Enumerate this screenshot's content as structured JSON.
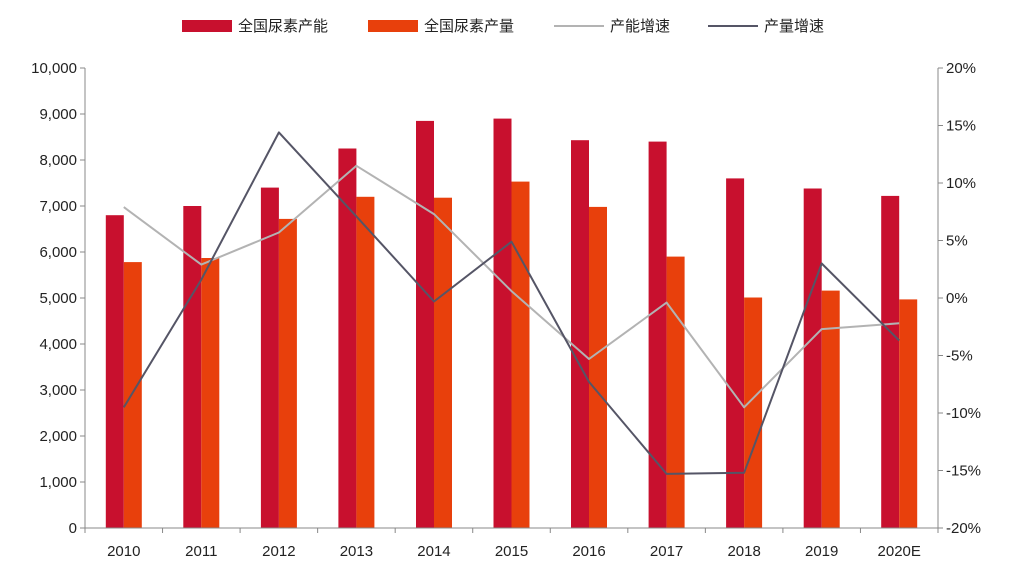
{
  "chart_data": {
    "type": "bar",
    "categories": [
      "2010",
      "2011",
      "2012",
      "2013",
      "2014",
      "2015",
      "2016",
      "2017",
      "2018",
      "2019",
      "2020E"
    ],
    "series": [
      {
        "name": "全国尿素产能",
        "kind": "bar",
        "axis": "left",
        "color": "#c8102e",
        "values": [
          6800,
          7000,
          7400,
          8250,
          8850,
          8900,
          8430,
          8400,
          7600,
          7380,
          7220
        ]
      },
      {
        "name": "全国尿素产量",
        "kind": "bar",
        "axis": "left",
        "color": "#e8400c",
        "values": [
          5780,
          5870,
          6720,
          7200,
          7180,
          7530,
          6980,
          5900,
          5010,
          5160,
          4970
        ]
      },
      {
        "name": "产能增速",
        "kind": "line",
        "axis": "right",
        "color": "#b3b3b3",
        "values": [
          7.9,
          2.9,
          5.7,
          11.5,
          7.3,
          0.6,
          -5.3,
          -0.4,
          -9.5,
          -2.7,
          -2.2
        ]
      },
      {
        "name": "产量增速",
        "kind": "line",
        "axis": "right",
        "color": "#555566",
        "values": [
          -9.5,
          1.6,
          14.4,
          7.1,
          -0.3,
          4.9,
          -7.3,
          -15.3,
          -15.2,
          3.0,
          -3.7
        ]
      }
    ],
    "y_left": {
      "min": 0,
      "max": 10000,
      "step": 1000,
      "ticks": [
        "0",
        "1,000",
        "2,000",
        "3,000",
        "4,000",
        "5,000",
        "6,000",
        "7,000",
        "8,000",
        "9,000",
        "10,000"
      ]
    },
    "y_right": {
      "min": -20,
      "max": 20,
      "step": 5,
      "ticks": [
        "-20%",
        "-15%",
        "-10%",
        "-5%",
        "0%",
        "5%",
        "10%",
        "15%",
        "20%"
      ]
    },
    "legend_position": "top",
    "grid": false
  }
}
